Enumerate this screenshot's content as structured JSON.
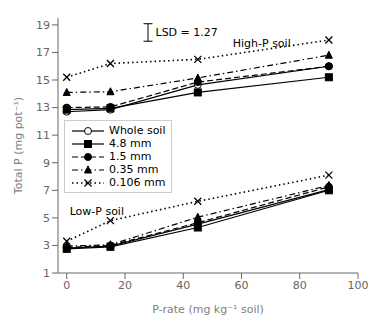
{
  "chart_data": {
    "type": "line",
    "x": [
      0,
      15,
      45,
      90
    ],
    "series": [
      {
        "name": "Whole soil",
        "color": "black",
        "marker": "open_circle",
        "line_style": "solid",
        "values": [
          12.7,
          12.85,
          14.65,
          16.0
        ]
      },
      {
        "name": "4.8 mm",
        "color": "black",
        "marker": "square",
        "line_style": "solid",
        "values": [
          12.85,
          12.95,
          14.1,
          15.2
        ]
      },
      {
        "name": "1.5 mm",
        "color": "black",
        "marker": "circle",
        "line_style": "dashed",
        "values": [
          13.0,
          13.05,
          14.85,
          16.0
        ]
      },
      {
        "name": "0.35 mm",
        "color": "black",
        "marker": "triangle",
        "line_style": "dashdot",
        "values": [
          14.1,
          14.15,
          15.15,
          16.8
        ]
      },
      {
        "name": "0.106 mm",
        "color": "black",
        "marker": "x",
        "line_style": "dotted",
        "values": [
          15.2,
          16.2,
          16.5,
          17.9
        ]
      },
      {
        "name": "Whole soil",
        "color": "black",
        "marker": "open_circle",
        "line_style": "solid",
        "values": [
          2.8,
          2.95,
          4.55,
          7.05
        ]
      },
      {
        "name": "4.8 mm",
        "color": "black",
        "marker": "square",
        "line_style": "solid",
        "values": [
          2.75,
          2.9,
          4.3,
          7.0
        ]
      },
      {
        "name": "1.5 mm",
        "color": "black",
        "marker": "circle",
        "line_style": "dashed",
        "values": [
          2.85,
          3.0,
          4.65,
          7.25
        ]
      },
      {
        "name": "0.35 mm",
        "color": "black",
        "marker": "triangle",
        "line_style": "dashdot",
        "values": [
          2.95,
          3.05,
          5.05,
          7.35
        ]
      },
      {
        "name": "0.106 mm",
        "color": "black",
        "marker": "x",
        "line_style": "dotted",
        "values": [
          3.3,
          4.8,
          6.2,
          8.1
        ]
      }
    ],
    "xlabel": "P-rate (mg kg⁻¹ soil)",
    "ylabel": "Total P (mg pot⁻¹)",
    "xlim": [
      -3,
      100
    ],
    "ylim": [
      1,
      19.5
    ],
    "xticks": [
      0,
      20,
      40,
      60,
      80,
      100
    ],
    "yticks": [
      1,
      3,
      5,
      7,
      9,
      11,
      13,
      15,
      17,
      19
    ],
    "grid": false,
    "lsd": {
      "value": 1.27,
      "y": 18.45,
      "label": "LSD = 1.27"
    },
    "annotations": [
      {
        "text": "High-P soil",
        "x": 57,
        "y": 17.7
      },
      {
        "text": "Low-P soil",
        "x": 1,
        "y": 5.5
      }
    ]
  }
}
